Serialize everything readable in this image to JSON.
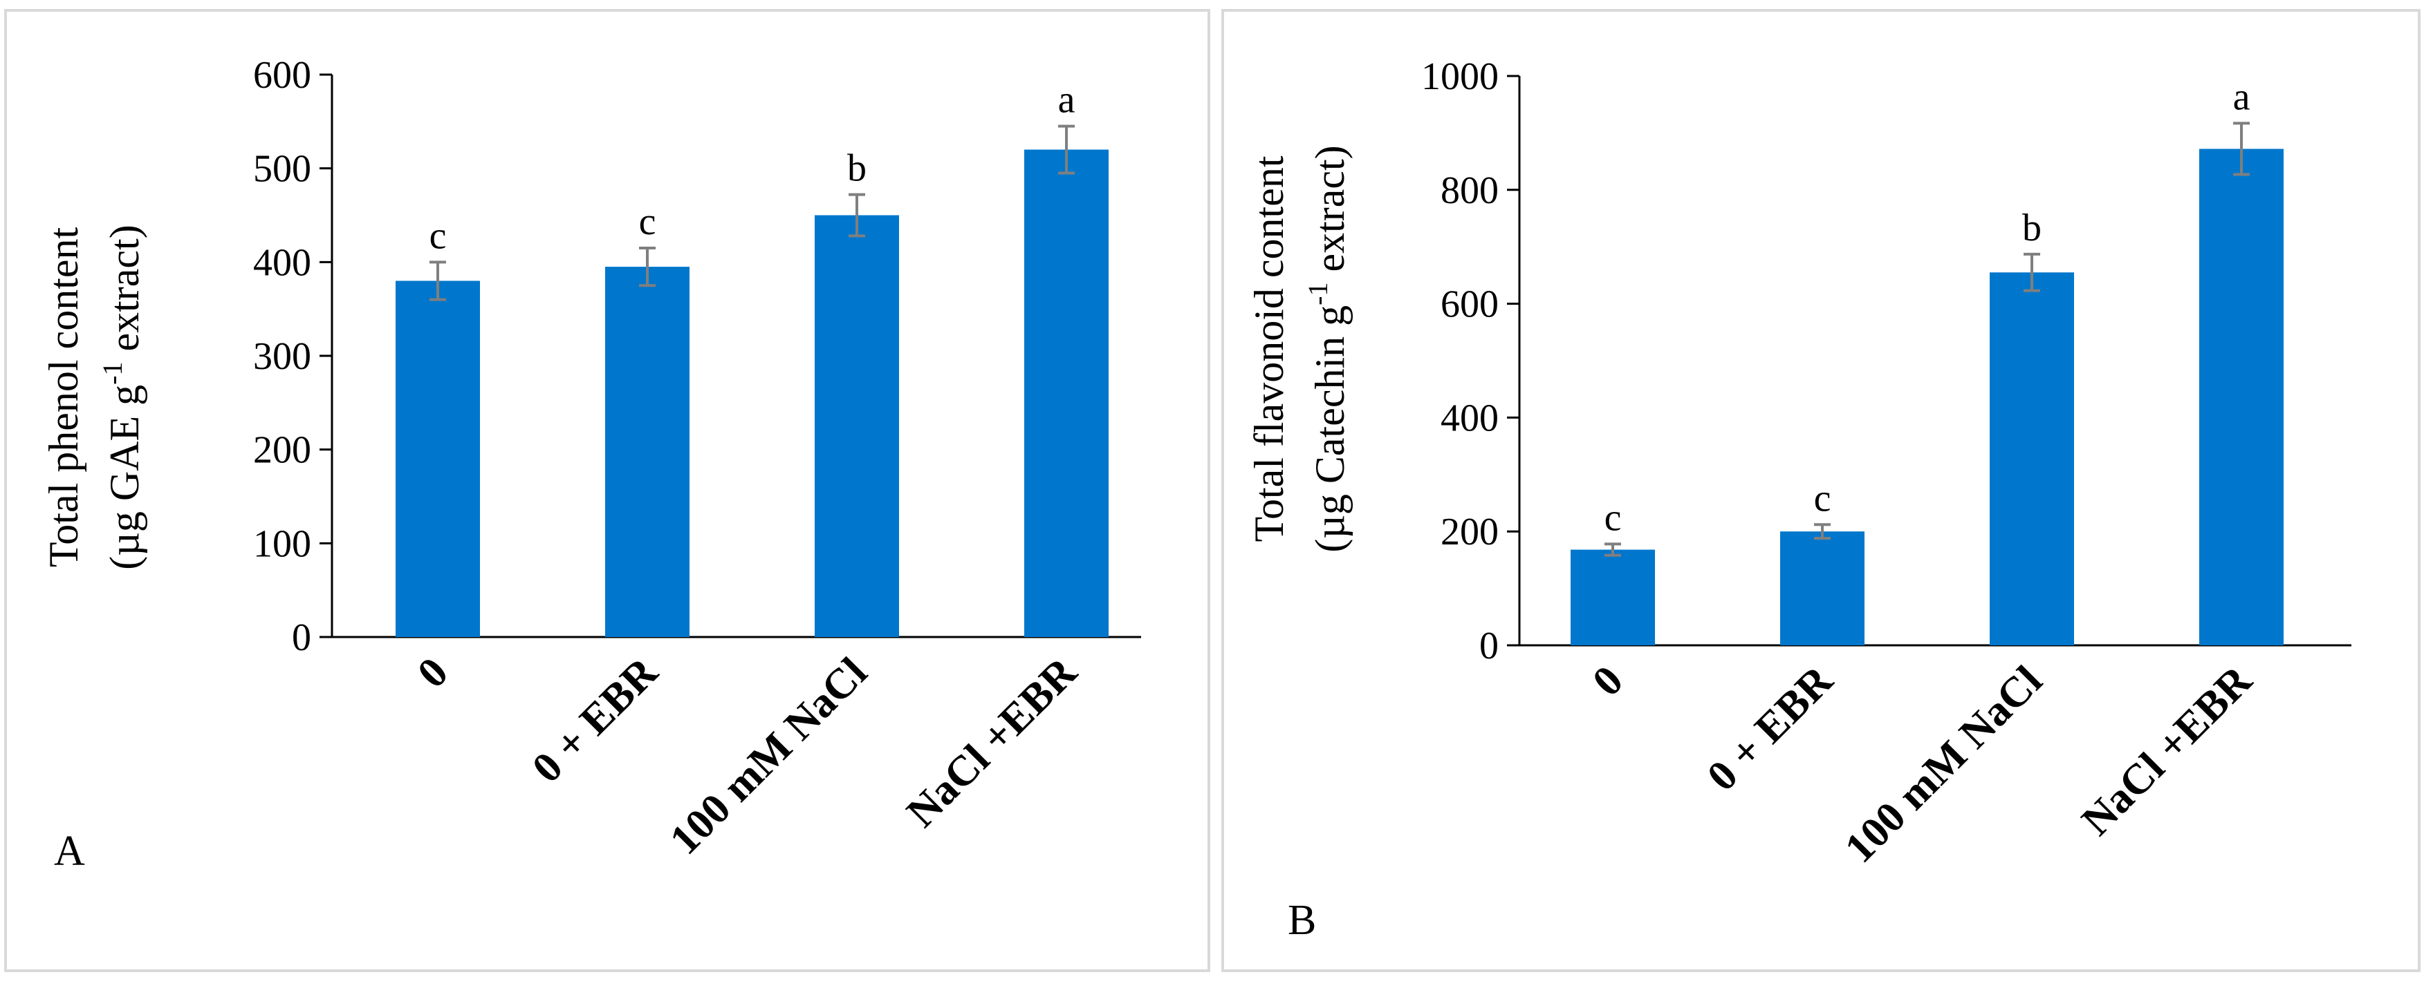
{
  "colors": {
    "bar": "#0077CC",
    "error_bar": "#7f7f7f",
    "axis": "#000000",
    "frame": "#d9d9d9"
  },
  "chart_data": [
    {
      "panel_label": "A",
      "type": "bar",
      "categories": [
        "0",
        "0 + EBR",
        "100 mM NaCl",
        "NaCl +EBR"
      ],
      "values": [
        380,
        395,
        450,
        520
      ],
      "errors": [
        20,
        20,
        22,
        25
      ],
      "significance": [
        "c",
        "c",
        "b",
        "a"
      ],
      "ylabel_line1": "Total phenol content",
      "ylabel_line2_pre": "(µg GAE g",
      "ylabel_sup": "-1",
      "ylabel_line2_post": " extract)",
      "ylim": [
        0,
        600
      ],
      "yticks": [
        0,
        100,
        200,
        300,
        400,
        500,
        600
      ],
      "title": "",
      "xlabel": "",
      "grid": false
    },
    {
      "panel_label": "B",
      "type": "bar",
      "categories": [
        "0",
        "0 + EBR",
        "100 mM NaCl",
        "NaCl +EBR"
      ],
      "values": [
        168,
        200,
        655,
        872
      ],
      "errors": [
        10,
        12,
        32,
        45
      ],
      "significance": [
        "c",
        "c",
        "b",
        "a"
      ],
      "ylabel_line1": "Total flavonoid content",
      "ylabel_line2_pre": "(µg Catechin g",
      "ylabel_sup": "-1",
      "ylabel_line2_post": " extract)",
      "ylim": [
        0,
        1000
      ],
      "yticks": [
        0,
        200,
        400,
        600,
        800,
        1000
      ],
      "title": "",
      "xlabel": "",
      "grid": false
    }
  ]
}
